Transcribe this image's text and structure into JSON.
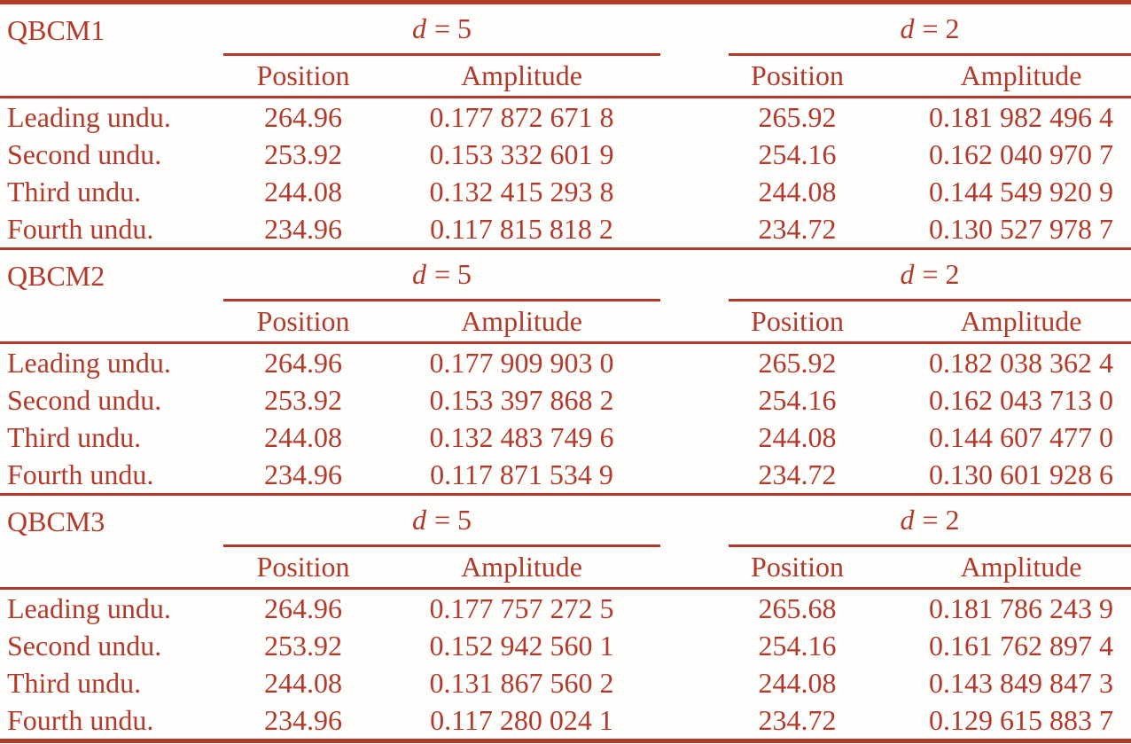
{
  "colors": {
    "accent": "#b23a2b",
    "background": "#fdfdfc"
  },
  "table": {
    "d_symbol": "d",
    "d5_equals": "= 5",
    "d2_equals": "= 2",
    "position_header": "Position",
    "amplitude_header": "Amplitude",
    "sections": [
      {
        "name": "QBCM1",
        "rows": [
          {
            "label": "Leading undu.",
            "d5_position": "264.96",
            "d5_amplitude": "0.177 872 671 8",
            "d2_position": "265.92",
            "d2_amplitude": "0.181 982 496 4"
          },
          {
            "label": "Second undu.",
            "d5_position": "253.92",
            "d5_amplitude": "0.153 332 601 9",
            "d2_position": "254.16",
            "d2_amplitude": "0.162 040 970 7"
          },
          {
            "label": "Third undu.",
            "d5_position": "244.08",
            "d5_amplitude": "0.132 415 293 8",
            "d2_position": "244.08",
            "d2_amplitude": "0.144 549 920 9"
          },
          {
            "label": "Fourth undu.",
            "d5_position": "234.96",
            "d5_amplitude": "0.117 815 818 2",
            "d2_position": "234.72",
            "d2_amplitude": "0.130 527 978 7"
          }
        ]
      },
      {
        "name": "QBCM2",
        "rows": [
          {
            "label": "Leading undu.",
            "d5_position": "264.96",
            "d5_amplitude": "0.177 909 903 0",
            "d2_position": "265.92",
            "d2_amplitude": "0.182 038 362 4"
          },
          {
            "label": "Second undu.",
            "d5_position": "253.92",
            "d5_amplitude": "0.153 397 868 2",
            "d2_position": "254.16",
            "d2_amplitude": "0.162 043 713 0"
          },
          {
            "label": "Third undu.",
            "d5_position": "244.08",
            "d5_amplitude": "0.132 483 749 6",
            "d2_position": "244.08",
            "d2_amplitude": "0.144 607 477 0"
          },
          {
            "label": "Fourth undu.",
            "d5_position": "234.96",
            "d5_amplitude": "0.117 871 534 9",
            "d2_position": "234.72",
            "d2_amplitude": "0.130 601 928 6"
          }
        ]
      },
      {
        "name": "QBCM3",
        "rows": [
          {
            "label": "Leading undu.",
            "d5_position": "264.96",
            "d5_amplitude": "0.177 757 272 5",
            "d2_position": "265.68",
            "d2_amplitude": "0.181 786 243 9"
          },
          {
            "label": "Second undu.",
            "d5_position": "253.92",
            "d5_amplitude": "0.152 942 560 1",
            "d2_position": "254.16",
            "d2_amplitude": "0.161 762 897 4"
          },
          {
            "label": "Third undu.",
            "d5_position": "244.08",
            "d5_amplitude": "0.131 867 560 2",
            "d2_position": "244.08",
            "d2_amplitude": "0.143 849 847 3"
          },
          {
            "label": "Fourth undu.",
            "d5_position": "234.96",
            "d5_amplitude": "0.117 280 024 1",
            "d2_position": "234.72",
            "d2_amplitude": "0.129 615 883 7"
          }
        ]
      }
    ]
  }
}
